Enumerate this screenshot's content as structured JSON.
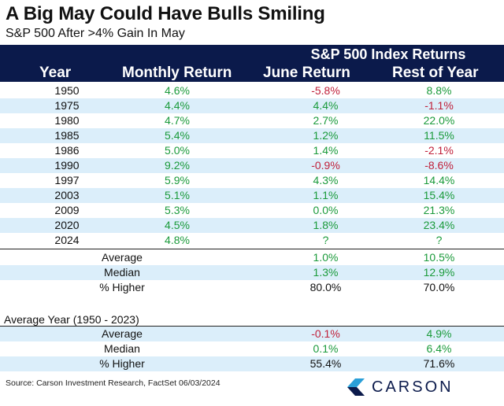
{
  "chart_data": {
    "type": "table",
    "title": "A Big May Could Have Bulls Smiling",
    "subtitle": "S&P 500 After >4% Gain In May",
    "group_header": "S&P 500 Index Returns",
    "columns": [
      "Year",
      "Monthly Return",
      "June Return",
      "Rest of Year"
    ],
    "rows": [
      {
        "year": "1950",
        "monthly": "4.6%",
        "june": "-5.8%",
        "rest": "8.8%"
      },
      {
        "year": "1975",
        "monthly": "4.4%",
        "june": "4.4%",
        "rest": "-1.1%"
      },
      {
        "year": "1980",
        "monthly": "4.7%",
        "june": "2.7%",
        "rest": "22.0%"
      },
      {
        "year": "1985",
        "monthly": "5.4%",
        "june": "1.2%",
        "rest": "11.5%"
      },
      {
        "year": "1986",
        "monthly": "5.0%",
        "june": "1.4%",
        "rest": "-2.1%"
      },
      {
        "year": "1990",
        "monthly": "9.2%",
        "june": "-0.9%",
        "rest": "-8.6%"
      },
      {
        "year": "1997",
        "monthly": "5.9%",
        "june": "4.3%",
        "rest": "14.4%"
      },
      {
        "year": "2003",
        "monthly": "5.1%",
        "june": "1.1%",
        "rest": "15.4%"
      },
      {
        "year": "2009",
        "monthly": "5.3%",
        "june": "0.0%",
        "rest": "21.3%"
      },
      {
        "year": "2020",
        "monthly": "4.5%",
        "june": "1.8%",
        "rest": "23.4%"
      },
      {
        "year": "2024",
        "monthly": "4.8%",
        "june": "?",
        "rest": "?"
      }
    ],
    "summary": [
      {
        "label": "Average",
        "june": "1.0%",
        "rest": "10.5%"
      },
      {
        "label": "Median",
        "june": "1.3%",
        "rest": "12.9%"
      },
      {
        "label": "% Higher",
        "june": "80.0%",
        "rest": "70.0%"
      }
    ],
    "average_year_title": "Average Year (1950 - 2023)",
    "average_year": [
      {
        "label": "Average",
        "june": "-0.1%",
        "rest": "4.9%"
      },
      {
        "label": "Median",
        "june": "0.1%",
        "rest": "6.4%"
      },
      {
        "label": "% Higher",
        "june": "55.4%",
        "rest": "71.6%"
      }
    ]
  },
  "source": "Source: Carson Investment Research, FactSet 06/03/2024",
  "logo_text": "CARSON",
  "colors": {
    "header": "#0b1a4b",
    "shade": "#dbeefa",
    "positive": "#1a9a3a",
    "negative": "#c0203a"
  }
}
